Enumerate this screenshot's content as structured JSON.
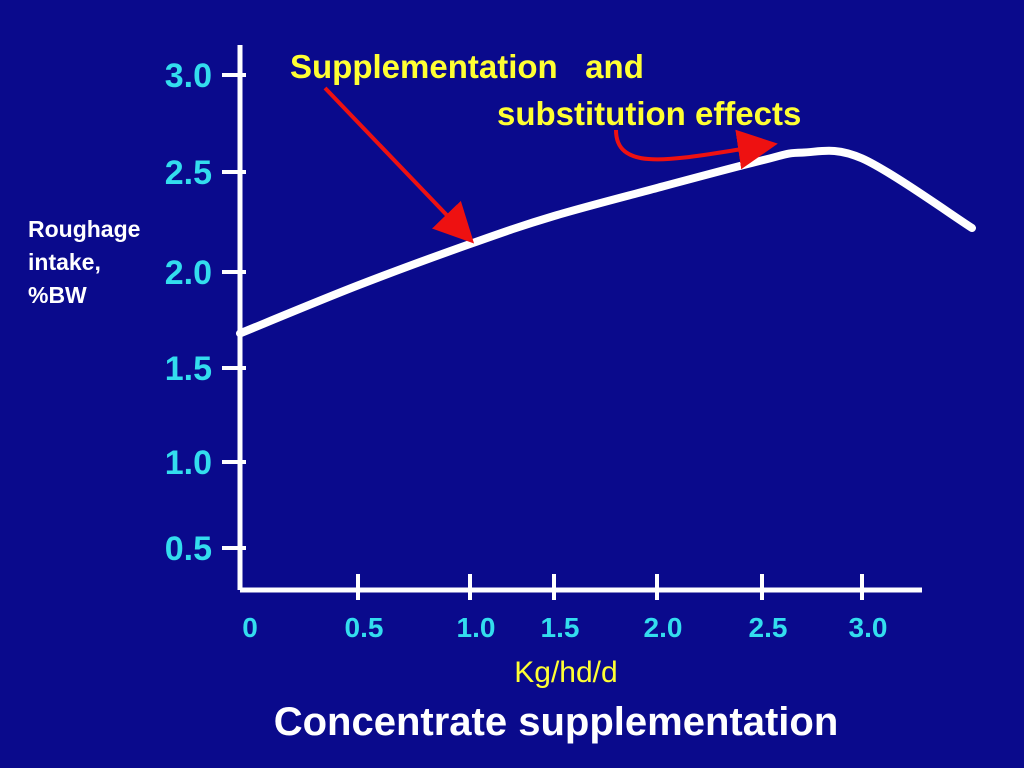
{
  "chart_data": {
    "type": "line",
    "xlabel": "Concentrate supplementation",
    "x_unit": "Kg/hd/d",
    "ylabel_lines": [
      "Roughage",
      "intake,",
      "%BW"
    ],
    "x_ticks": [
      "0",
      "0.5",
      "1.0",
      "1.5",
      "2.0",
      "2.5",
      "3.0"
    ],
    "y_ticks": [
      "0.5",
      "1.0",
      "1.5",
      "2.0",
      "2.5",
      "3.0"
    ],
    "series": [
      {
        "x": [
          0,
          0.5,
          1.0,
          1.5,
          2.0,
          2.5,
          2.7,
          3.0,
          3.55
        ],
        "y": [
          1.68,
          1.93,
          2.14,
          2.28,
          2.42,
          2.56,
          2.6,
          2.57,
          2.22
        ]
      }
    ],
    "annotations": [
      {
        "lines": [
          "Supplementation   and",
          "substitution effects"
        ]
      }
    ],
    "grid": false,
    "colors": {
      "background": "#0a0a8c",
      "axis": "#ffffff",
      "line": "#ffffff",
      "tick_labels": "#33ddee",
      "annotation": "#ffff33",
      "arrow": "#ee1111"
    }
  }
}
